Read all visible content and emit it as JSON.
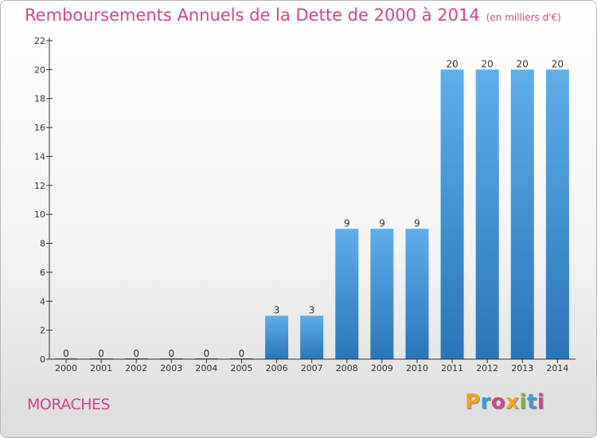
{
  "header": {
    "title": "Remboursements Annuels de la Dette de 2000 à 2014",
    "unit": "(en milliers d'€)"
  },
  "footer": {
    "commune": "MORACHES",
    "logo": "Proxiti",
    "logo_colors": [
      "#f7a21b",
      "#3a9bd9",
      "#d0468a",
      "#f7a21b",
      "#7cb342",
      "#3a9bd9",
      "#d0468a"
    ]
  },
  "colors": {
    "bar_light": "#5eaeea",
    "bar_dark": "#2a75b8",
    "accent": "#d0468a"
  },
  "chart_data": {
    "type": "bar",
    "title": "Remboursements Annuels de la Dette de 2000 à 2014",
    "xlabel": "",
    "ylabel": "",
    "categories": [
      "2000",
      "2001",
      "2002",
      "2003",
      "2004",
      "2005",
      "2006",
      "2007",
      "2008",
      "2009",
      "2010",
      "2011",
      "2012",
      "2013",
      "2014"
    ],
    "values": [
      0,
      0,
      0,
      0,
      0,
      0,
      3,
      3,
      9,
      9,
      9,
      20,
      20,
      20,
      20
    ],
    "ylim": [
      0,
      22
    ],
    "yticks": [
      0,
      2,
      4,
      6,
      8,
      10,
      12,
      14,
      16,
      18,
      20,
      22
    ],
    "grid": false,
    "legend": "none"
  }
}
